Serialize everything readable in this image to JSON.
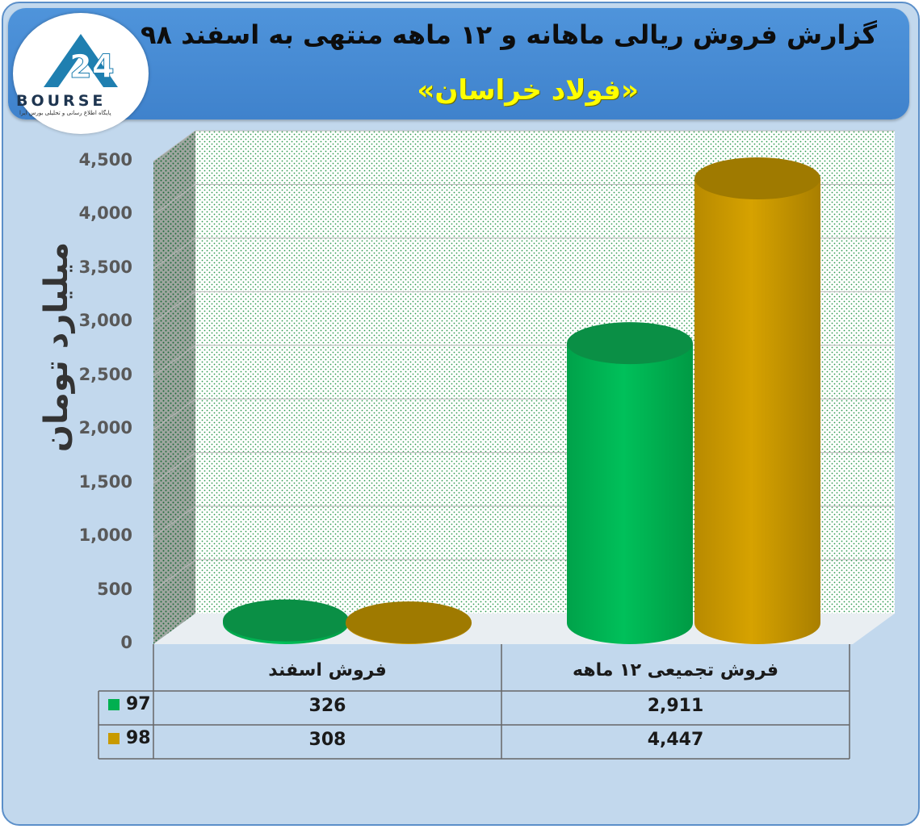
{
  "header": {
    "title": "گزارش فروش ریالی ماهانه و ۱۲ ماهه منتهی به اسفند ۹۸",
    "subtitle": "«فولاد خراسان»"
  },
  "logo": {
    "word": "BOURSE",
    "tagline": "پایگاه اطلاع رسانی و تحلیلی بورس ایرا"
  },
  "colors": {
    "series_97": "#00b050",
    "series_98": "#c89a00",
    "banner": "#4a8fd6",
    "background": "#c2d8ed"
  },
  "chart_data": {
    "type": "bar",
    "style": "3d-cylinder",
    "categories": [
      "فروش اسفند",
      "فروش تجمیعی ۱۲ ماهه"
    ],
    "series": [
      {
        "name": "97",
        "values": [
          326,
          2911
        ]
      },
      {
        "name": "98",
        "values": [
          308,
          4447
        ]
      }
    ],
    "ylabel": "میلیارد تومان",
    "ylim": [
      0,
      4500
    ],
    "yticks": [
      "0",
      "500",
      "1,000",
      "1,500",
      "2,000",
      "2,500",
      "3,000",
      "3,500",
      "4,000",
      "4,500"
    ],
    "grid": true,
    "data_table": {
      "rows": [
        {
          "series": "97",
          "cells": [
            "326",
            "2,911"
          ]
        },
        {
          "series": "98",
          "cells": [
            "308",
            "4,447"
          ]
        }
      ]
    }
  }
}
